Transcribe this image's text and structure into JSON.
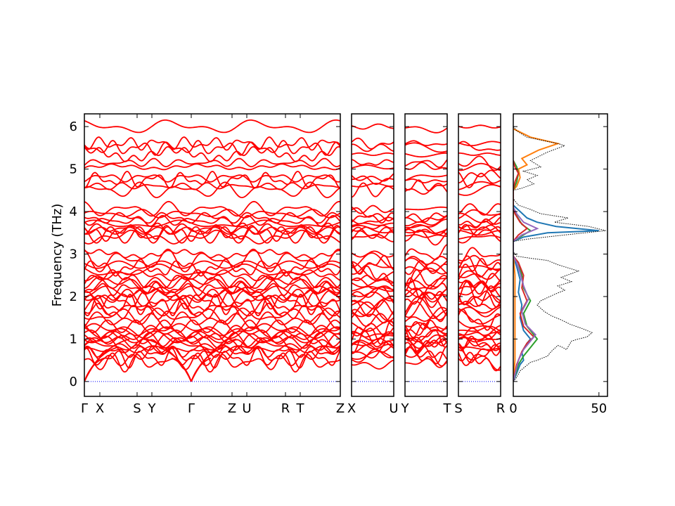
{
  "chart_data": {
    "type": "line",
    "ylabel": "Frequency (THz)",
    "ylim": [
      -0.35,
      6.3
    ],
    "yticks": [
      0,
      1,
      2,
      3,
      4,
      5,
      6
    ],
    "colors": {
      "bands": "#ff0000",
      "zero_line": "#0000ff",
      "dos_total": "#000000",
      "dos_partial": [
        "#1f77b4",
        "#ff7f0e",
        "#2ca02c",
        "#d62728",
        "#9467bd"
      ]
    },
    "band_panels": [
      {
        "segments": 6,
        "labels": [
          "Γ",
          "X",
          "S",
          "Y",
          "Γ",
          "Z",
          "U",
          "R",
          "T",
          "Z"
        ]
      },
      {
        "segments": 1,
        "labels": [
          "X",
          "U"
        ]
      },
      {
        "segments": 1,
        "labels": [
          "Y",
          "T"
        ]
      },
      {
        "segments": 1,
        "labels": [
          "S",
          "R"
        ]
      }
    ],
    "optical_branch_freqs": [
      0.45,
      0.55,
      0.62,
      0.7,
      0.78,
      0.84,
      0.9,
      0.95,
      1.0,
      1.05,
      1.1,
      1.15,
      1.22,
      1.3,
      1.45,
      1.55,
      1.65,
      1.72,
      1.8,
      1.9,
      1.98,
      2.05,
      2.12,
      2.18,
      2.25,
      2.32,
      2.4,
      2.5,
      2.6,
      2.68,
      2.75,
      2.85,
      3.0,
      3.4,
      3.45,
      3.5,
      3.55,
      3.6,
      3.7,
      3.78,
      3.85,
      3.95,
      4.05,
      4.5,
      4.6,
      4.75,
      4.8,
      5.05,
      5.15,
      5.35,
      5.5,
      5.6,
      6.0
    ],
    "dos": {
      "xlim": [
        0,
        55
      ],
      "xticks": [
        0,
        50
      ],
      "total": [
        [
          0,
          0
        ],
        [
          2,
          0.1
        ],
        [
          4,
          0.25
        ],
        [
          7,
          0.35
        ],
        [
          10,
          0.45
        ],
        [
          14,
          0.5
        ],
        [
          17,
          0.55
        ],
        [
          20,
          0.6
        ],
        [
          22,
          0.7
        ],
        [
          26,
          0.85
        ],
        [
          29,
          0.8
        ],
        [
          31,
          0.75
        ],
        [
          34,
          0.95
        ],
        [
          38,
          1.0
        ],
        [
          43,
          1.05
        ],
        [
          46,
          1.15
        ],
        [
          40,
          1.25
        ],
        [
          33,
          1.35
        ],
        [
          28,
          1.45
        ],
        [
          22,
          1.55
        ],
        [
          18,
          1.65
        ],
        [
          14,
          1.8
        ],
        [
          16,
          1.9
        ],
        [
          24,
          2.05
        ],
        [
          30,
          2.15
        ],
        [
          26,
          2.25
        ],
        [
          34,
          2.35
        ],
        [
          28,
          2.45
        ],
        [
          38,
          2.6
        ],
        [
          26,
          2.75
        ],
        [
          20,
          2.85
        ],
        [
          10,
          2.9
        ],
        [
          2,
          2.95
        ],
        [
          0,
          3.05
        ],
        [
          0,
          3.3
        ],
        [
          8,
          3.35
        ],
        [
          30,
          3.45
        ],
        [
          54,
          3.55
        ],
        [
          44,
          3.65
        ],
        [
          24,
          3.75
        ],
        [
          32,
          3.85
        ],
        [
          16,
          3.95
        ],
        [
          10,
          4.05
        ],
        [
          3,
          4.15
        ],
        [
          0,
          4.3
        ],
        [
          0,
          4.5
        ],
        [
          5,
          4.55
        ],
        [
          12,
          4.65
        ],
        [
          8,
          4.75
        ],
        [
          14,
          4.85
        ],
        [
          6,
          4.95
        ],
        [
          16,
          5.05
        ],
        [
          10,
          5.2
        ],
        [
          20,
          5.4
        ],
        [
          30,
          5.55
        ],
        [
          26,
          5.6
        ],
        [
          8,
          5.75
        ],
        [
          2,
          5.9
        ],
        [
          0,
          6.0
        ]
      ],
      "partials": [
        [
          [
            0,
            0
          ],
          [
            2,
            0.2
          ],
          [
            4,
            0.4
          ],
          [
            6,
            0.5
          ],
          [
            5,
            0.7
          ],
          [
            8,
            0.9
          ],
          [
            10,
            1.0
          ],
          [
            6,
            1.2
          ],
          [
            4,
            1.5
          ],
          [
            5,
            1.8
          ],
          [
            3,
            2.1
          ],
          [
            4,
            2.4
          ],
          [
            2,
            2.7
          ],
          [
            0,
            2.95
          ],
          [
            0,
            3.3
          ],
          [
            6,
            3.4
          ],
          [
            20,
            3.5
          ],
          [
            50,
            3.55
          ],
          [
            25,
            3.65
          ],
          [
            14,
            3.75
          ],
          [
            8,
            3.85
          ],
          [
            4,
            4.0
          ],
          [
            0,
            4.15
          ]
        ],
        [
          [
            0,
            0
          ],
          [
            1,
            0.5
          ],
          [
            1,
            1.5
          ],
          [
            1,
            2.5
          ],
          [
            0,
            3.0
          ],
          [
            0,
            4.5
          ],
          [
            2,
            4.6
          ],
          [
            4,
            4.8
          ],
          [
            3,
            5.0
          ],
          [
            8,
            5.1
          ],
          [
            5,
            5.25
          ],
          [
            15,
            5.45
          ],
          [
            26,
            5.6
          ],
          [
            10,
            5.75
          ],
          [
            0,
            5.95
          ]
        ],
        [
          [
            0,
            0
          ],
          [
            3,
            0.4
          ],
          [
            6,
            0.6
          ],
          [
            10,
            0.8
          ],
          [
            14,
            1.0
          ],
          [
            8,
            1.3
          ],
          [
            6,
            1.6
          ],
          [
            10,
            1.9
          ],
          [
            6,
            2.2
          ],
          [
            5,
            2.5
          ],
          [
            3,
            2.8
          ],
          [
            0,
            2.95
          ],
          [
            0,
            3.3
          ],
          [
            4,
            3.4
          ],
          [
            10,
            3.55
          ],
          [
            5,
            3.7
          ],
          [
            2,
            3.9
          ],
          [
            0,
            4.1
          ],
          [
            0,
            4.5
          ],
          [
            2,
            4.7
          ],
          [
            3,
            4.9
          ],
          [
            2,
            5.05
          ],
          [
            0,
            5.2
          ]
        ],
        [
          [
            0,
            0
          ],
          [
            2,
            0.4
          ],
          [
            5,
            0.7
          ],
          [
            8,
            0.9
          ],
          [
            12,
            1.05
          ],
          [
            6,
            1.3
          ],
          [
            4,
            1.6
          ],
          [
            8,
            1.9
          ],
          [
            5,
            2.2
          ],
          [
            6,
            2.5
          ],
          [
            3,
            2.8
          ],
          [
            0,
            2.95
          ],
          [
            0,
            3.3
          ],
          [
            3,
            3.45
          ],
          [
            8,
            3.6
          ],
          [
            4,
            3.75
          ],
          [
            1,
            3.95
          ],
          [
            0,
            4.1
          ],
          [
            0,
            4.5
          ],
          [
            1,
            4.7
          ],
          [
            3,
            4.9
          ],
          [
            1,
            5.05
          ],
          [
            0,
            5.2
          ]
        ],
        [
          [
            0,
            0
          ],
          [
            3,
            0.5
          ],
          [
            6,
            0.75
          ],
          [
            10,
            0.95
          ],
          [
            13,
            1.1
          ],
          [
            7,
            1.35
          ],
          [
            5,
            1.65
          ],
          [
            9,
            1.95
          ],
          [
            6,
            2.25
          ],
          [
            4,
            2.55
          ],
          [
            2,
            2.8
          ],
          [
            0,
            2.95
          ],
          [
            0,
            3.3
          ],
          [
            5,
            3.45
          ],
          [
            14,
            3.6
          ],
          [
            6,
            3.75
          ],
          [
            2,
            3.95
          ],
          [
            0,
            4.1
          ]
        ]
      ]
    }
  }
}
